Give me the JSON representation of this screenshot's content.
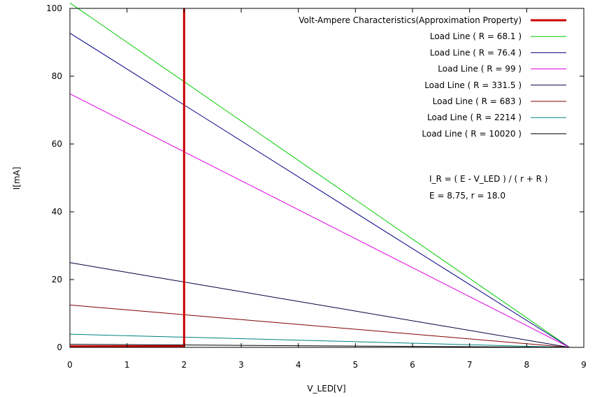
{
  "chart_data": {
    "type": "line",
    "xlabel": "V_LED[V]",
    "ylabel": "I[mA]",
    "xlim": [
      0,
      9
    ],
    "ylim": [
      0,
      100
    ],
    "xticks": [
      "0",
      "1",
      "2",
      "3",
      "4",
      "5",
      "6",
      "7",
      "8",
      "9"
    ],
    "yticks": [
      "0",
      "20",
      "40",
      "60",
      "80",
      "100"
    ],
    "grid": false,
    "legend_position": "top-right",
    "series": [
      {
        "name": "Volt-Ampere Characteristics(Approximation Property)",
        "color": "#cc0000",
        "width": "thick",
        "x": [
          0,
          2,
          2
        ],
        "y": [
          0.3,
          0.3,
          100
        ]
      },
      {
        "name": "Load Line ( R = 68.1 )",
        "color": "#00cc00",
        "x": [
          0,
          8.75
        ],
        "y": [
          101.6,
          0
        ]
      },
      {
        "name": "Load Line ( R = 76.4 )",
        "color": "#000080",
        "x": [
          0,
          8.75
        ],
        "y": [
          92.7,
          0
        ]
      },
      {
        "name": "Load Line ( R = 99 )",
        "color": "#e000e0",
        "x": [
          0,
          8.75
        ],
        "y": [
          74.8,
          0
        ]
      },
      {
        "name": "Load Line ( R = 331.5 )",
        "color": "#000040",
        "x": [
          0,
          8.75
        ],
        "y": [
          25.0,
          0
        ]
      },
      {
        "name": "Load Line ( R = 683 )",
        "color": "#800000",
        "x": [
          0,
          8.75
        ],
        "y": [
          12.5,
          0
        ]
      },
      {
        "name": "Load Line ( R = 2214 )",
        "color": "#008080",
        "x": [
          0,
          8.75
        ],
        "y": [
          3.9,
          0
        ]
      },
      {
        "name": "Load Line ( R = 10020 )",
        "color": "#000000",
        "x": [
          0,
          8.75
        ],
        "y": [
          0.9,
          0
        ]
      }
    ],
    "annotations": [
      "I_R = ( E - V_LED ) / ( r + R )",
      "E = 8.75, r = 18.0"
    ]
  }
}
